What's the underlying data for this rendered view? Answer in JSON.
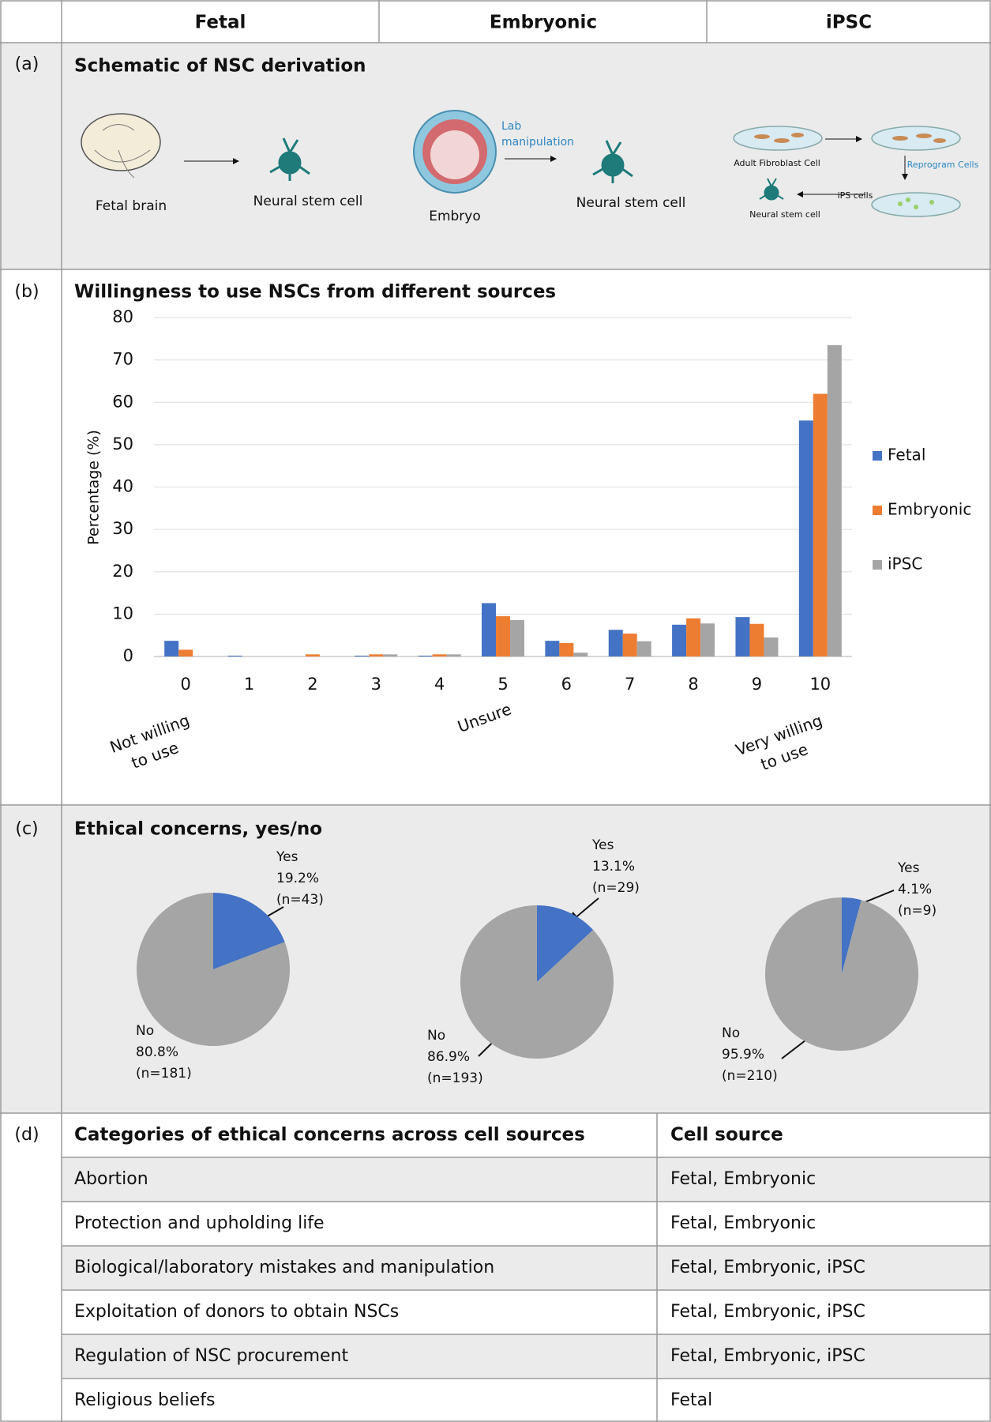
{
  "header": {
    "columns": [
      "Fetal",
      "Embryonic",
      "iPSC"
    ]
  },
  "panel_a": {
    "label": "(a)",
    "title": "Schematic of NSC derivation",
    "fetal": {
      "source": "Fetal brain",
      "result": "Neural stem cell"
    },
    "embryonic": {
      "source": "Embryo",
      "step": [
        "Lab",
        "manipulation"
      ],
      "result": "Neural stem cell"
    },
    "ipsc": {
      "start": "Adult Fibroblast Cell",
      "step": "Reprogram Cells",
      "cells": "iPS cells",
      "result": "Neural stem cell"
    }
  },
  "panel_b": {
    "label": "(b)",
    "chart_data": {
      "type": "bar",
      "title": "Willingness to use NSCs from different sources",
      "y_label": "Percentage (%)",
      "categories": [
        "0",
        "1",
        "2",
        "3",
        "4",
        "5",
        "6",
        "7",
        "8",
        "9",
        "10"
      ],
      "x_notes": [
        [
          "Not willing",
          "to use"
        ],
        [
          "Unsure"
        ],
        [
          "Very willing",
          "to use"
        ]
      ],
      "series": [
        {
          "name": "Fetal",
          "color": "#4472c4",
          "values": [
            3.7,
            0.2,
            0,
            0.2,
            0.2,
            12.6,
            3.7,
            6.3,
            7.5,
            9.3,
            55.7
          ]
        },
        {
          "name": "Embryonic",
          "color": "#ed7d31",
          "values": [
            1.6,
            0,
            0.5,
            0.5,
            0.5,
            9.5,
            3.2,
            5.4,
            9.0,
            7.7,
            62.0
          ]
        },
        {
          "name": "iPSC",
          "color": "#a5a5a5",
          "values": [
            0,
            0,
            0,
            0.5,
            0.5,
            8.6,
            0.9,
            3.6,
            7.8,
            4.5,
            73.5
          ]
        }
      ],
      "ylim": [
        0,
        80
      ],
      "yticks": [
        0,
        10,
        20,
        30,
        40,
        50,
        60,
        70,
        80
      ],
      "grid": true,
      "legend": "right"
    }
  },
  "panel_c": {
    "label": "(c)",
    "title": "Ethical concerns, yes/no",
    "charts": [
      {
        "type": "pie",
        "categories": [
          "Yes",
          "No"
        ],
        "values": [
          19.2,
          80.8
        ],
        "value_labels": [
          "19.2%",
          "80.8%"
        ],
        "count_labels": [
          "(n=43)",
          "(n=181)"
        ],
        "colors": [
          "#4472c4",
          "#a5a5a5"
        ]
      },
      {
        "type": "pie",
        "categories": [
          "Yes",
          "No"
        ],
        "values": [
          13.1,
          86.9
        ],
        "value_labels": [
          "13.1%",
          "86.9%"
        ],
        "count_labels": [
          "(n=29)",
          "(n=193)"
        ],
        "colors": [
          "#4472c4",
          "#a5a5a5"
        ]
      },
      {
        "type": "pie",
        "categories": [
          "Yes",
          "No"
        ],
        "values": [
          4.1,
          95.9
        ],
        "value_labels": [
          "4.1%",
          "95.9%"
        ],
        "count_labels": [
          "(n=9)",
          "(n=210)"
        ],
        "colors": [
          "#4472c4",
          "#a5a5a5"
        ]
      }
    ]
  },
  "panel_d": {
    "label": "(d)",
    "table": {
      "header": [
        "Categories of ethical concerns across cell sources",
        "Cell source"
      ],
      "rows": [
        [
          "Abortion",
          "Fetal, Embryonic"
        ],
        [
          "Protection and upholding life",
          "Fetal, Embryonic"
        ],
        [
          "Biological/laboratory mistakes and manipulation",
          "Fetal, Embryonic, iPSC"
        ],
        [
          "Exploitation of donors to obtain NSCs",
          "Fetal, Embryonic, iPSC"
        ],
        [
          "Regulation of NSC procurement",
          "Fetal, Embryonic, iPSC"
        ],
        [
          "Religious beliefs",
          "Fetal"
        ]
      ]
    }
  }
}
